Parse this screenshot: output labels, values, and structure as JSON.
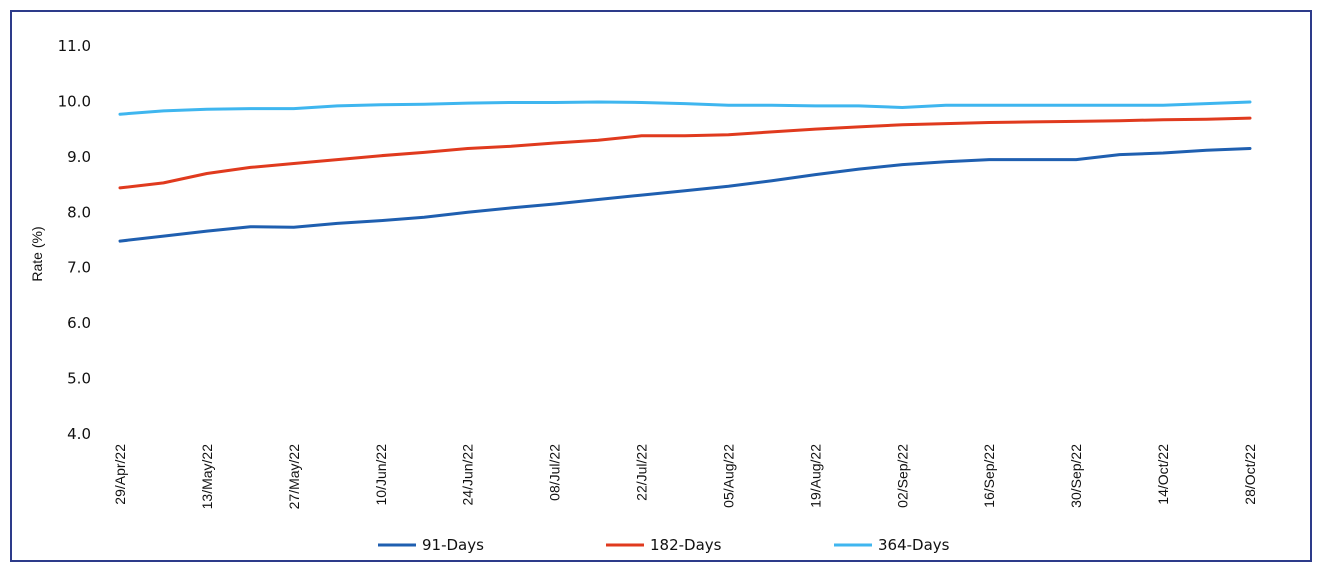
{
  "chart_data": {
    "type": "line",
    "title": "",
    "xlabel": "",
    "ylabel": "Rate (%)",
    "ylim": [
      4.0,
      11.0
    ],
    "yticks": [
      "11.0",
      "10.0",
      "9.0",
      "8.0",
      "7.0",
      "6.0",
      "5.0",
      "4.0"
    ],
    "x": [
      "29/Apr/22",
      "06/May/22",
      "13/May/22",
      "20/May/22",
      "27/May/22",
      "03/Jun/22",
      "10/Jun/22",
      "17/Jun/22",
      "24/Jun/22",
      "01/Jul/22",
      "08/Jul/22",
      "15/Jul/22",
      "22/Jul/22",
      "29/Jul/22",
      "05/Aug/22",
      "12/Aug/22",
      "19/Aug/22",
      "26/Aug/22",
      "02/Sep/22",
      "09/Sep/22",
      "16/Sep/22",
      "23/Sep/22",
      "30/Sep/22",
      "07/Oct/22",
      "14/Oct/22",
      "21/Oct/22",
      "28/Oct/22"
    ],
    "xtick_labels": [
      "29/Apr/22",
      "13/May/22",
      "27/May/22",
      "10/Jun/22",
      "24/Jun/22",
      "08/Jul/22",
      "22/Jul/22",
      "05/Aug/22",
      "19/Aug/22",
      "02/Sep/22",
      "16/Sep/22",
      "30/Sep/22",
      "14/Oct/22",
      "28/Oct/22"
    ],
    "grid": false,
    "legend_position": "bottom",
    "series": [
      {
        "name": "91-Days",
        "color": "#1f5fb0",
        "values": [
          7.48,
          7.57,
          7.66,
          7.74,
          7.73,
          7.8,
          7.85,
          7.91,
          8.0,
          8.08,
          8.15,
          8.23,
          8.31,
          8.39,
          8.47,
          8.57,
          8.68,
          8.78,
          8.86,
          8.91,
          8.95,
          8.95,
          8.95,
          9.04,
          9.07,
          9.12,
          9.15
        ]
      },
      {
        "name": "182-Days",
        "color": "#e03a1e",
        "values": [
          8.44,
          8.53,
          8.7,
          8.81,
          8.88,
          8.95,
          9.02,
          9.08,
          9.15,
          9.19,
          9.25,
          9.3,
          9.38,
          9.38,
          9.4,
          9.45,
          9.5,
          9.54,
          9.58,
          9.6,
          9.62,
          9.63,
          9.64,
          9.65,
          9.67,
          9.68,
          9.7
        ]
      },
      {
        "name": "364-Days",
        "color": "#3fb6ef",
        "values": [
          9.77,
          9.83,
          9.86,
          9.87,
          9.87,
          9.92,
          9.94,
          9.95,
          9.97,
          9.98,
          9.98,
          9.99,
          9.98,
          9.96,
          9.93,
          9.93,
          9.92,
          9.92,
          9.89,
          9.93,
          9.93,
          9.93,
          9.93,
          9.93,
          9.93,
          9.96,
          9.99
        ]
      }
    ]
  }
}
